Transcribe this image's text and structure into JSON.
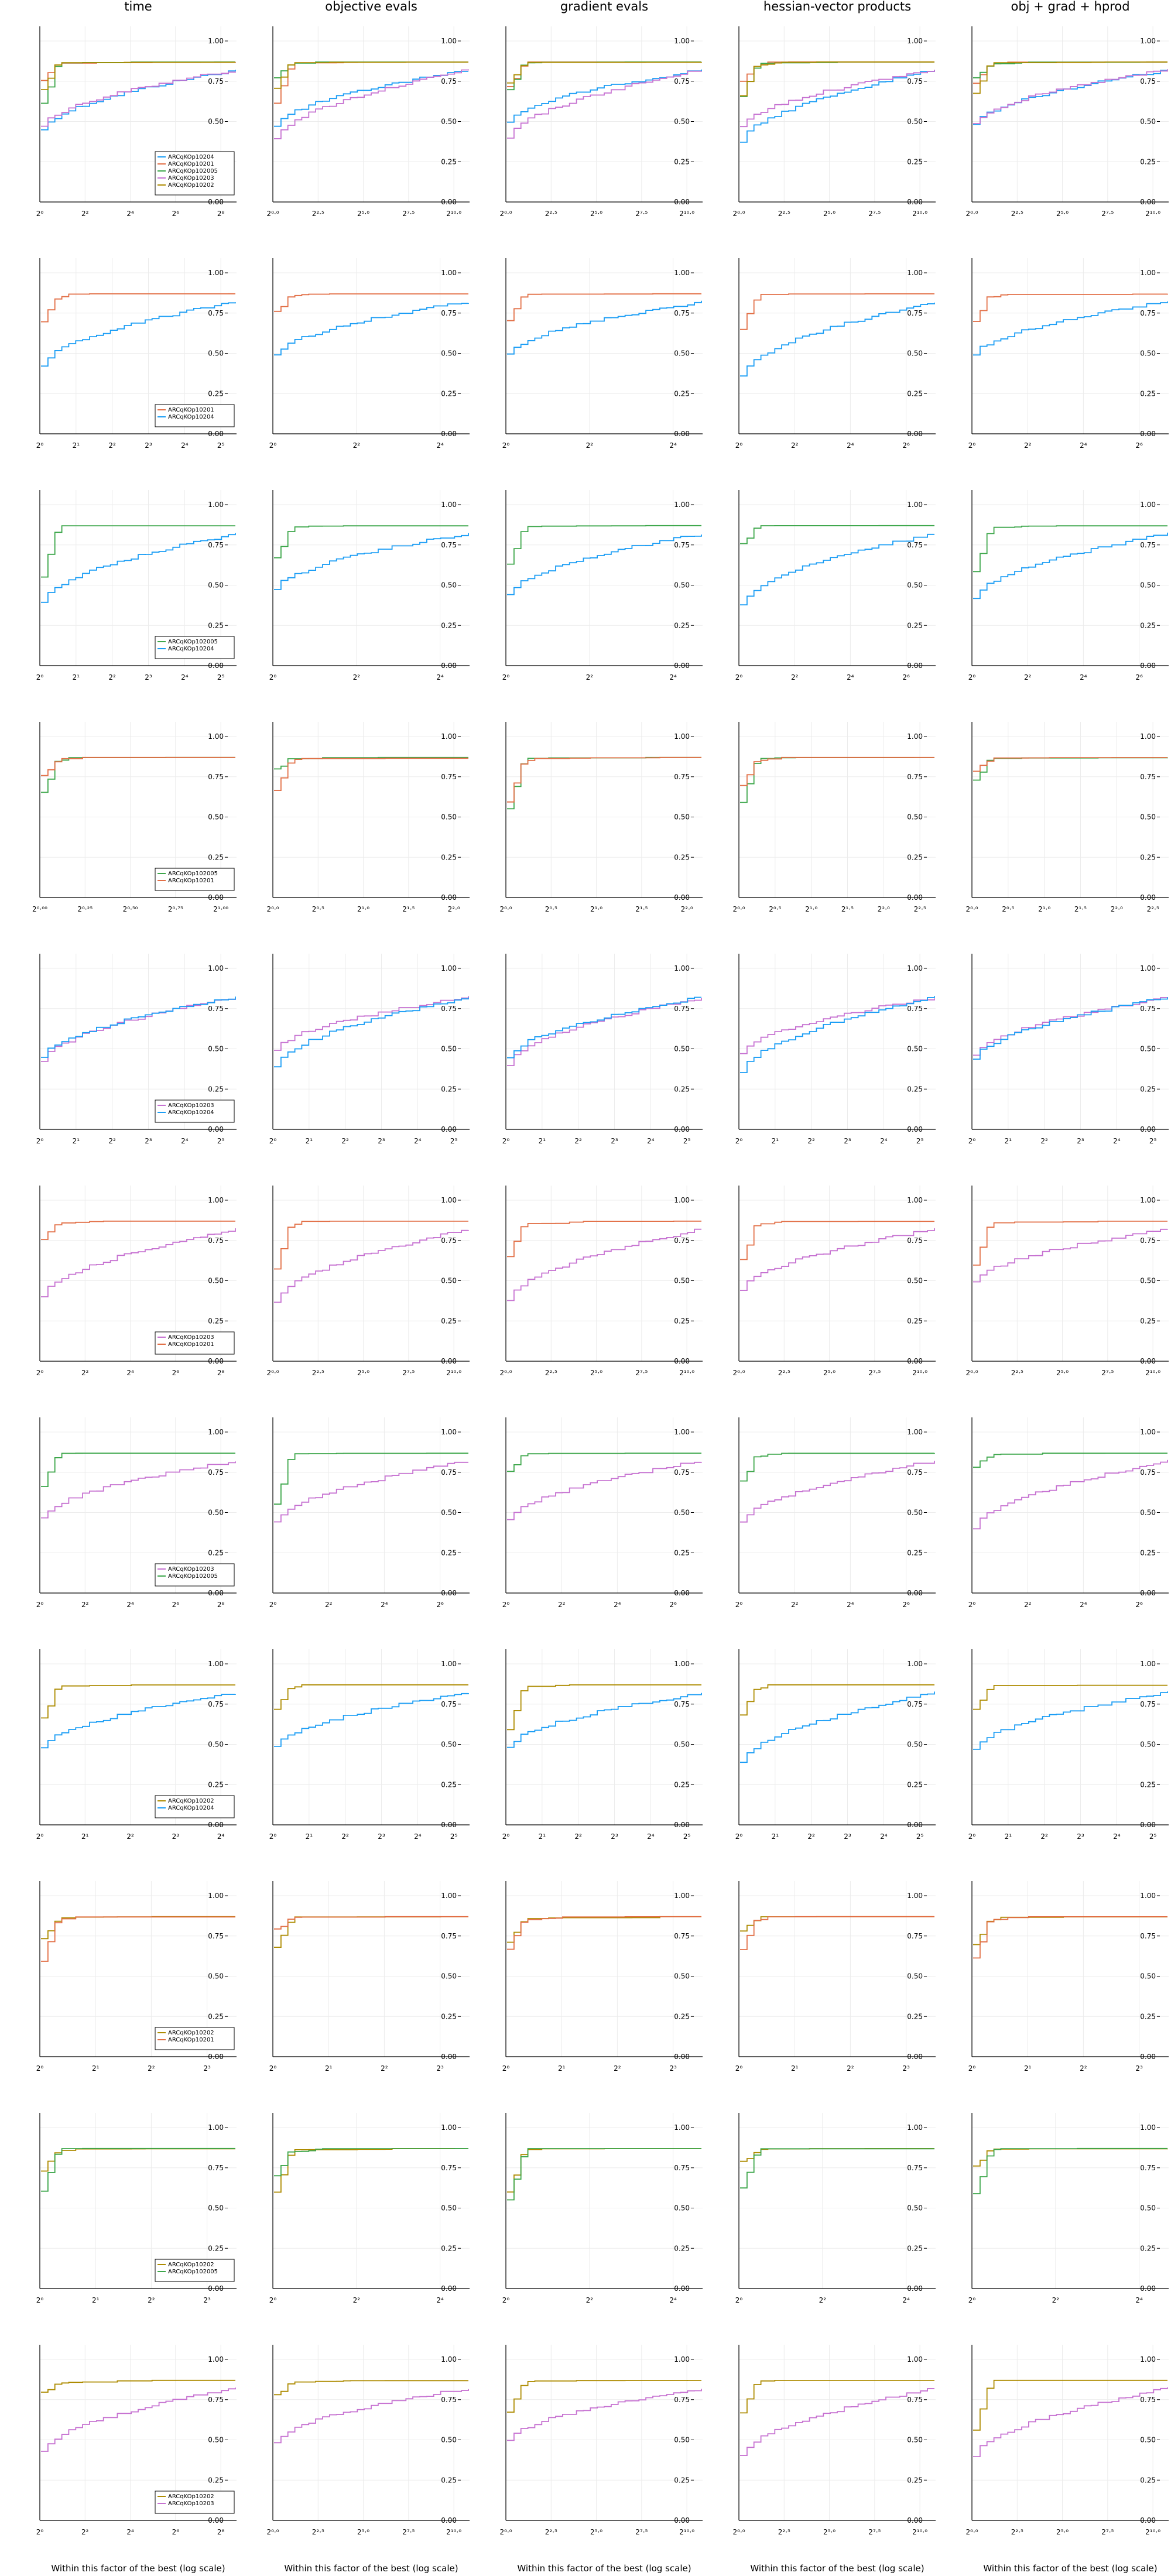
{
  "figure": {
    "column_titles": [
      "time",
      "objective evals",
      "gradient evals",
      "hessian-vector products",
      "obj + grad + hprod"
    ],
    "xlabel": "Within this factor of the best (log scale)",
    "y_ticks": [
      "0.00",
      "0.25",
      "0.50",
      "0.75",
      "1.00"
    ]
  },
  "colors": {
    "ARCqKOp10204": "#1a9df5",
    "ARCqKOp10201": "#e26f46",
    "ARCqKOp102005": "#3ca64a",
    "ARCqKOp10203": "#c671d1",
    "ARCqKOp10202": "#ad8b00"
  },
  "chart_data": [
    {
      "type": "line",
      "row": 1,
      "series": [
        {
          "name": "ARCqKOp10204",
          "final": 0.83
        },
        {
          "name": "ARCqKOp10201",
          "final": 0.87
        },
        {
          "name": "ARCqKOp102005",
          "final": 0.87
        },
        {
          "name": "ARCqKOp10203",
          "final": 0.83
        },
        {
          "name": "ARCqKOp10202",
          "final": 0.87
        }
      ],
      "x_ticks": [
        [
          "2⁰",
          "2²",
          "2⁴",
          "2⁶",
          "2⁸"
        ],
        [
          "2⁰·⁰",
          "2²·⁵",
          "2⁵·⁰",
          "2⁷·⁵",
          "2¹⁰·⁰"
        ],
        [
          "2⁰·⁰",
          "2²·⁵",
          "2⁵·⁰",
          "2⁷·⁵",
          "2¹⁰·⁰"
        ],
        [
          "2⁰·⁰",
          "2²·⁵",
          "2⁵·⁰",
          "2⁷·⁵",
          "2¹⁰·⁰"
        ],
        [
          "2⁰·⁰",
          "2²·⁵",
          "2⁵·⁰",
          "2⁷·⁵",
          "2¹⁰·⁰"
        ]
      ]
    },
    {
      "type": "line",
      "row": 2,
      "series": [
        {
          "name": "ARCqKOp10201",
          "final": 0.87
        },
        {
          "name": "ARCqKOp10204",
          "final": 0.83
        }
      ],
      "x_ticks": [
        [
          "2⁰",
          "2¹",
          "2²",
          "2³",
          "2⁴",
          "2⁵"
        ],
        [
          "2⁰",
          "2²",
          "2⁴"
        ],
        [
          "2⁰",
          "2²",
          "2⁴"
        ],
        [
          "2⁰",
          "2²",
          "2⁴",
          "2⁶"
        ],
        [
          "2⁰",
          "2²",
          "2⁴",
          "2⁶"
        ]
      ]
    },
    {
      "type": "line",
      "row": 3,
      "series": [
        {
          "name": "ARCqKOp102005",
          "final": 0.87
        },
        {
          "name": "ARCqKOp10204",
          "final": 0.83
        }
      ],
      "x_ticks": [
        [
          "2⁰",
          "2¹",
          "2²",
          "2³",
          "2⁴",
          "2⁵"
        ],
        [
          "2⁰",
          "2²",
          "2⁴"
        ],
        [
          "2⁰",
          "2²",
          "2⁴"
        ],
        [
          "2⁰",
          "2²",
          "2⁴",
          "2⁶"
        ],
        [
          "2⁰",
          "2²",
          "2⁴",
          "2⁶"
        ]
      ]
    },
    {
      "type": "line",
      "row": 4,
      "series": [
        {
          "name": "ARCqKOp102005",
          "final": 0.87
        },
        {
          "name": "ARCqKOp10201",
          "final": 0.87
        }
      ],
      "x_ticks": [
        [
          "2⁰·⁰⁰",
          "2⁰·²⁵",
          "2⁰·⁵⁰",
          "2⁰·⁷⁵",
          "2¹·⁰⁰"
        ],
        [
          "2⁰·⁰",
          "2⁰·⁵",
          "2¹·⁰",
          "2¹·⁵",
          "2²·⁰"
        ],
        [
          "2⁰·⁰",
          "2⁰·⁵",
          "2¹·⁰",
          "2¹·⁵",
          "2²·⁰"
        ],
        [
          "2⁰·⁰",
          "2⁰·⁵",
          "2¹·⁰",
          "2¹·⁵",
          "2²·⁰",
          "2²·⁵"
        ],
        [
          "2⁰·⁰",
          "2⁰·⁵",
          "2¹·⁰",
          "2¹·⁵",
          "2²·⁰",
          "2²·⁵"
        ]
      ]
    },
    {
      "type": "line",
      "row": 5,
      "series": [
        {
          "name": "ARCqKOp10203",
          "final": 0.83
        },
        {
          "name": "ARCqKOp10204",
          "final": 0.83
        }
      ],
      "x_ticks": [
        [
          "2⁰",
          "2¹",
          "2²",
          "2³",
          "2⁴",
          "2⁵"
        ],
        [
          "2⁰",
          "2¹",
          "2²",
          "2³",
          "2⁴",
          "2⁵"
        ],
        [
          "2⁰",
          "2¹",
          "2²",
          "2³",
          "2⁴",
          "2⁵"
        ],
        [
          "2⁰",
          "2¹",
          "2²",
          "2³",
          "2⁴",
          "2⁵"
        ],
        [
          "2⁰",
          "2¹",
          "2²",
          "2³",
          "2⁴",
          "2⁵"
        ]
      ]
    },
    {
      "type": "line",
      "row": 6,
      "series": [
        {
          "name": "ARCqKOp10203",
          "final": 0.83
        },
        {
          "name": "ARCqKOp10201",
          "final": 0.87
        }
      ],
      "x_ticks": [
        [
          "2⁰",
          "2²",
          "2⁴",
          "2⁶",
          "2⁸"
        ],
        [
          "2⁰·⁰",
          "2²·⁵",
          "2⁵·⁰",
          "2⁷·⁵",
          "2¹⁰·⁰"
        ],
        [
          "2⁰·⁰",
          "2²·⁵",
          "2⁵·⁰",
          "2⁷·⁵",
          "2¹⁰·⁰"
        ],
        [
          "2⁰·⁰",
          "2²·⁵",
          "2⁵·⁰",
          "2⁷·⁵",
          "2¹⁰·⁰"
        ],
        [
          "2⁰·⁰",
          "2²·⁵",
          "2⁵·⁰",
          "2⁷·⁵",
          "2¹⁰·⁰"
        ]
      ]
    },
    {
      "type": "line",
      "row": 7,
      "series": [
        {
          "name": "ARCqKOp10203",
          "final": 0.83
        },
        {
          "name": "ARCqKOp102005",
          "final": 0.87
        }
      ],
      "x_ticks": [
        [
          "2⁰",
          "2²",
          "2⁴",
          "2⁶",
          "2⁸"
        ],
        [
          "2⁰",
          "2²",
          "2⁴",
          "2⁶"
        ],
        [
          "2⁰",
          "2²",
          "2⁴",
          "2⁶"
        ],
        [
          "2⁰",
          "2²",
          "2⁴",
          "2⁶"
        ],
        [
          "2⁰",
          "2²",
          "2⁴",
          "2⁶"
        ]
      ]
    },
    {
      "type": "line",
      "row": 8,
      "series": [
        {
          "name": "ARCqKOp10202",
          "final": 0.87
        },
        {
          "name": "ARCqKOp10204",
          "final": 0.83
        }
      ],
      "x_ticks": [
        [
          "2⁰",
          "2¹",
          "2²",
          "2³",
          "2⁴"
        ],
        [
          "2⁰",
          "2¹",
          "2²",
          "2³",
          "2⁴",
          "2⁵"
        ],
        [
          "2⁰",
          "2¹",
          "2²",
          "2³",
          "2⁴",
          "2⁵"
        ],
        [
          "2⁰",
          "2¹",
          "2²",
          "2³",
          "2⁴",
          "2⁵"
        ],
        [
          "2⁰",
          "2¹",
          "2²",
          "2³",
          "2⁴",
          "2⁵"
        ]
      ]
    },
    {
      "type": "line",
      "row": 9,
      "series": [
        {
          "name": "ARCqKOp10202",
          "final": 0.87
        },
        {
          "name": "ARCqKOp10201",
          "final": 0.87
        }
      ],
      "x_ticks": [
        [
          "2⁰",
          "2¹",
          "2²",
          "2³"
        ],
        [
          "2⁰",
          "2¹",
          "2²",
          "2³"
        ],
        [
          "2⁰",
          "2¹",
          "2²",
          "2³"
        ],
        [
          "2⁰",
          "2¹",
          "2²",
          "2³"
        ],
        [
          "2⁰",
          "2¹",
          "2²",
          "2³"
        ]
      ]
    },
    {
      "type": "line",
      "row": 10,
      "series": [
        {
          "name": "ARCqKOp10202",
          "final": 0.87
        },
        {
          "name": "ARCqKOp102005",
          "final": 0.87
        }
      ],
      "x_ticks": [
        [
          "2⁰",
          "2¹",
          "2²",
          "2³"
        ],
        [
          "2⁰",
          "2²",
          "2⁴"
        ],
        [
          "2⁰",
          "2²",
          "2⁴"
        ],
        [
          "2⁰",
          "2²",
          "2⁴"
        ],
        [
          "2⁰",
          "2²",
          "2⁴"
        ]
      ]
    },
    {
      "type": "line",
      "row": 11,
      "series": [
        {
          "name": "ARCqKOp10202",
          "final": 0.87
        },
        {
          "name": "ARCqKOp10203",
          "final": 0.83
        }
      ],
      "x_ticks": [
        [
          "2⁰",
          "2²",
          "2⁴",
          "2⁶",
          "2⁸"
        ],
        [
          "2⁰·⁰",
          "2²·⁵",
          "2⁵·⁰",
          "2⁷·⁵",
          "2¹⁰·⁰"
        ],
        [
          "2⁰·⁰",
          "2²·⁵",
          "2⁵·⁰",
          "2⁷·⁵",
          "2¹⁰·⁰"
        ],
        [
          "2⁰·⁰",
          "2²·⁵",
          "2⁵·⁰",
          "2⁷·⁵",
          "2¹⁰·⁰"
        ],
        [
          "2⁰·⁰",
          "2²·⁵",
          "2⁵·⁰",
          "2⁷·⁵",
          "2¹⁰·⁰"
        ]
      ]
    }
  ]
}
